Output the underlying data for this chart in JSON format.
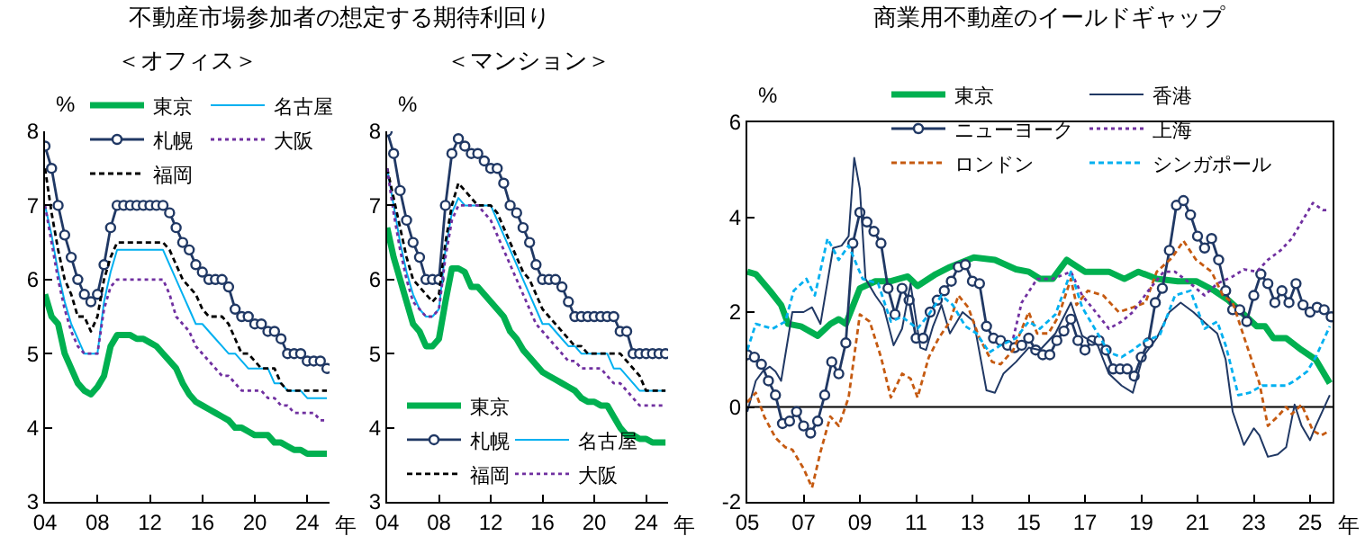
{
  "chart_data": [
    {
      "type": "line",
      "title": "不動産市場参加者の想定する期待利回り",
      "subtitle": "＜オフィス＞",
      "xlabel": "年",
      "ylabel": "%",
      "legend": "top",
      "x": [
        2004,
        2004.5,
        2005,
        2005.5,
        2006,
        2006.5,
        2007,
        2007.5,
        2008,
        2008.5,
        2009,
        2009.5,
        2010,
        2010.5,
        2011,
        2011.5,
        2012,
        2012.5,
        2013,
        2013.5,
        2014,
        2014.5,
        2015,
        2015.5,
        2016,
        2016.5,
        2017,
        2017.5,
        2018,
        2018.5,
        2019,
        2019.5,
        2020,
        2020.5,
        2021,
        2021.5,
        2022,
        2022.5,
        2023,
        2023.5,
        2024,
        2024.5,
        2025,
        2025.5
      ],
      "xlim": [
        2004,
        2025.7
      ],
      "xticks": [
        {
          "value": 2004,
          "label": "04"
        },
        {
          "value": 2008,
          "label": "08"
        },
        {
          "value": 2012,
          "label": "12"
        },
        {
          "value": 2016,
          "label": "16"
        },
        {
          "value": 2020,
          "label": "20"
        },
        {
          "value": 2024,
          "label": "24"
        }
      ],
      "ylim": [
        3,
        8
      ],
      "yticks": [
        3,
        4,
        5,
        6,
        7,
        8
      ],
      "series": [
        {
          "name": "東京",
          "color": "#00b050",
          "line_style": "solid",
          "values": [
            5.8,
            5.5,
            5.4,
            5.0,
            4.8,
            4.6,
            4.5,
            4.45,
            4.55,
            4.7,
            5.1,
            5.25,
            5.25,
            5.25,
            5.2,
            5.2,
            5.15,
            5.1,
            5.0,
            4.9,
            4.8,
            4.6,
            4.45,
            4.35,
            4.3,
            4.25,
            4.2,
            4.15,
            4.1,
            4.0,
            4.0,
            3.95,
            3.9,
            3.9,
            3.9,
            3.8,
            3.8,
            3.75,
            3.7,
            3.7,
            3.65,
            3.65,
            3.65,
            3.65
          ]
        },
        {
          "name": "札幌",
          "color": "#203864",
          "line_style": "solid",
          "marker": "circle",
          "values": [
            7.8,
            7.5,
            7.0,
            6.6,
            6.3,
            6.0,
            5.8,
            5.7,
            5.8,
            6.2,
            6.7,
            7.0,
            7.0,
            7.0,
            7.0,
            7.0,
            7.0,
            7.0,
            7.0,
            6.9,
            6.7,
            6.5,
            6.4,
            6.2,
            6.1,
            6.0,
            6.0,
            6.0,
            5.9,
            5.6,
            5.5,
            5.5,
            5.4,
            5.4,
            5.3,
            5.3,
            5.2,
            5.0,
            5.0,
            5.0,
            4.9,
            4.9,
            4.9,
            4.8
          ]
        },
        {
          "name": "福岡",
          "color": "#000000",
          "line_style": "dashed",
          "values": [
            7.5,
            6.9,
            6.4,
            6.0,
            5.8,
            5.5,
            5.5,
            5.3,
            5.5,
            6.0,
            6.3,
            6.5,
            6.5,
            6.5,
            6.5,
            6.5,
            6.5,
            6.5,
            6.5,
            6.4,
            6.2,
            6.0,
            5.9,
            5.8,
            5.6,
            5.5,
            5.5,
            5.5,
            5.4,
            5.2,
            5.0,
            5.0,
            4.9,
            4.8,
            4.8,
            4.8,
            4.6,
            4.5,
            4.5,
            4.5,
            4.5,
            4.5,
            4.5,
            4.5
          ]
        },
        {
          "name": "名古屋",
          "color": "#00b0f0",
          "line_style": "solid",
          "values": [
            7.0,
            6.6,
            6.1,
            5.7,
            5.4,
            5.2,
            5.0,
            5.0,
            5.0,
            5.7,
            6.1,
            6.4,
            6.4,
            6.4,
            6.4,
            6.4,
            6.4,
            6.4,
            6.4,
            6.2,
            6.0,
            5.8,
            5.6,
            5.4,
            5.4,
            5.3,
            5.2,
            5.1,
            5.0,
            5.0,
            4.9,
            4.8,
            4.8,
            4.8,
            4.8,
            4.6,
            4.6,
            4.5,
            4.5,
            4.5,
            4.4,
            4.4,
            4.4,
            4.4
          ]
        },
        {
          "name": "大阪",
          "color": "#7030a0",
          "line_style": "dotted",
          "values": [
            7.0,
            6.5,
            6.0,
            5.6,
            5.3,
            5.1,
            5.0,
            5.0,
            5.0,
            5.6,
            5.9,
            6.0,
            6.0,
            6.0,
            6.0,
            6.0,
            6.0,
            6.0,
            6.0,
            5.8,
            5.5,
            5.4,
            5.3,
            5.1,
            5.0,
            4.9,
            4.8,
            4.7,
            4.7,
            4.6,
            4.5,
            4.5,
            4.5,
            4.5,
            4.4,
            4.4,
            4.3,
            4.3,
            4.2,
            4.2,
            4.2,
            4.2,
            4.1,
            4.1
          ]
        }
      ]
    },
    {
      "type": "line",
      "subtitle": "＜マンション＞",
      "xlabel": "年",
      "ylabel": "%",
      "legend": "bottom left",
      "x": [
        2004,
        2004.5,
        2005,
        2005.5,
        2006,
        2006.5,
        2007,
        2007.5,
        2008,
        2008.5,
        2009,
        2009.5,
        2010,
        2010.5,
        2011,
        2011.5,
        2012,
        2012.5,
        2013,
        2013.5,
        2014,
        2014.5,
        2015,
        2015.5,
        2016,
        2016.5,
        2017,
        2017.5,
        2018,
        2018.5,
        2019,
        2019.5,
        2020,
        2020.5,
        2021,
        2021.5,
        2022,
        2022.5,
        2023,
        2023.5,
        2024,
        2024.5,
        2025,
        2025.5
      ],
      "xlim": [
        2004,
        2025.7
      ],
      "xticks": [
        {
          "value": 2004,
          "label": "04"
        },
        {
          "value": 2008,
          "label": "08"
        },
        {
          "value": 2012,
          "label": "12"
        },
        {
          "value": 2016,
          "label": "16"
        },
        {
          "value": 2020,
          "label": "20"
        },
        {
          "value": 2024,
          "label": "24"
        }
      ],
      "ylim": [
        3,
        8
      ],
      "yticks": [
        3,
        4,
        5,
        6,
        7,
        8
      ],
      "series": [
        {
          "name": "東京",
          "color": "#00b050",
          "line_style": "solid",
          "values": [
            6.7,
            6.3,
            6.0,
            5.7,
            5.4,
            5.3,
            5.1,
            5.1,
            5.2,
            5.7,
            6.15,
            6.15,
            6.1,
            5.9,
            5.9,
            5.8,
            5.7,
            5.6,
            5.5,
            5.3,
            5.2,
            5.05,
            4.95,
            4.85,
            4.75,
            4.7,
            4.65,
            4.6,
            4.55,
            4.5,
            4.4,
            4.35,
            4.35,
            4.3,
            4.3,
            4.15,
            4.0,
            3.9,
            3.9,
            3.85,
            3.85,
            3.8,
            3.8,
            3.8
          ]
        },
        {
          "name": "札幌",
          "color": "#203864",
          "line_style": "solid",
          "marker": "circle",
          "values": [
            8.0,
            7.7,
            7.2,
            6.8,
            6.5,
            6.3,
            6.0,
            6.0,
            6.0,
            7.0,
            7.7,
            7.9,
            7.8,
            7.7,
            7.7,
            7.6,
            7.5,
            7.5,
            7.3,
            7.0,
            6.9,
            6.7,
            6.5,
            6.2,
            6.0,
            6.0,
            6.0,
            5.9,
            5.7,
            5.5,
            5.5,
            5.5,
            5.5,
            5.5,
            5.5,
            5.5,
            5.3,
            5.3,
            5.0,
            5.0,
            5.0,
            5.0,
            5.0,
            5.0
          ]
        },
        {
          "name": "福岡",
          "color": "#000000",
          "line_style": "dashed",
          "values": [
            7.5,
            7.1,
            6.7,
            6.3,
            6.0,
            5.9,
            5.8,
            5.7,
            5.8,
            6.5,
            7.0,
            7.3,
            7.2,
            7.1,
            7.0,
            7.0,
            7.0,
            6.9,
            6.7,
            6.5,
            6.3,
            6.1,
            6.0,
            5.8,
            5.6,
            5.5,
            5.4,
            5.3,
            5.2,
            5.1,
            5.1,
            5.0,
            5.0,
            5.0,
            5.0,
            5.0,
            5.0,
            4.9,
            4.8,
            4.7,
            4.5,
            4.5,
            4.5,
            4.5
          ]
        },
        {
          "name": "名古屋",
          "color": "#00b0f0",
          "line_style": "solid",
          "values": [
            7.5,
            7.0,
            6.5,
            6.1,
            5.8,
            5.6,
            5.5,
            5.5,
            5.6,
            6.4,
            6.9,
            7.1,
            7.0,
            7.0,
            7.0,
            7.0,
            7.0,
            6.8,
            6.6,
            6.4,
            6.2,
            6.0,
            5.8,
            5.6,
            5.4,
            5.4,
            5.3,
            5.2,
            5.1,
            5.1,
            5.0,
            5.0,
            5.0,
            5.0,
            5.0,
            4.8,
            4.8,
            4.7,
            4.6,
            4.5,
            4.5,
            4.5,
            4.5,
            4.5
          ]
        },
        {
          "name": "大阪",
          "color": "#7030a0",
          "line_style": "dotted",
          "values": [
            7.5,
            6.9,
            6.4,
            6.0,
            5.7,
            5.6,
            5.5,
            5.5,
            5.6,
            6.3,
            6.8,
            7.0,
            7.0,
            7.0,
            7.0,
            6.9,
            6.8,
            6.6,
            6.4,
            6.2,
            6.0,
            5.8,
            5.6,
            5.4,
            5.3,
            5.2,
            5.1,
            5.0,
            4.9,
            4.9,
            4.8,
            4.8,
            4.8,
            4.8,
            4.7,
            4.6,
            4.6,
            4.5,
            4.4,
            4.3,
            4.3,
            4.3,
            4.3,
            4.3
          ]
        }
      ]
    },
    {
      "type": "line",
      "title": "商業用不動産のイールドギャップ",
      "xlabel": "年",
      "ylabel": "%",
      "legend": "top",
      "xlim": [
        2005,
        2025.8
      ],
      "xticks": [
        {
          "value": 2005,
          "label": "05"
        },
        {
          "value": 2007,
          "label": "07"
        },
        {
          "value": 2009,
          "label": "09"
        },
        {
          "value": 2011,
          "label": "11"
        },
        {
          "value": 2013,
          "label": "13"
        },
        {
          "value": 2015,
          "label": "15"
        },
        {
          "value": 2017,
          "label": "17"
        },
        {
          "value": 2019,
          "label": "19"
        },
        {
          "value": 2021,
          "label": "21"
        },
        {
          "value": 2023,
          "label": "23"
        },
        {
          "value": 2025,
          "label": "25"
        }
      ],
      "ylim": [
        -2,
        6
      ],
      "yticks": [
        -2,
        0,
        2,
        4,
        6
      ],
      "ref_lines": [
        {
          "axis": "y",
          "value": 0
        }
      ],
      "series": [
        {
          "name": "東京",
          "color": "#00b050",
          "line_style": "solid",
          "x": [
            2005,
            2005.3,
            2005.8,
            2006.2,
            2006.45,
            2006.9,
            2007.5,
            2007.95,
            2008.25,
            2008.5,
            2009,
            2009.55,
            2010.1,
            2010.7,
            2011.05,
            2011.7,
            2012.2,
            2013.05,
            2013.8,
            2014.55,
            2015,
            2015.4,
            2015.85,
            2016.35,
            2017,
            2017.85,
            2018.4,
            2018.9,
            2019.55,
            2020.3,
            2020.95,
            2021.6,
            2022.1,
            2022.65,
            2023.1,
            2023.4,
            2023.7,
            2024.15,
            2024.7,
            2025.2,
            2025.7
          ],
          "values": [
            2.85,
            2.8,
            2.45,
            2.15,
            1.75,
            1.7,
            1.5,
            1.75,
            1.85,
            1.75,
            2.5,
            2.65,
            2.65,
            2.75,
            2.55,
            2.8,
            2.95,
            3.15,
            3.1,
            2.9,
            2.85,
            2.7,
            2.7,
            3.1,
            2.85,
            2.85,
            2.7,
            2.85,
            2.7,
            2.65,
            2.65,
            2.45,
            2.25,
            1.95,
            1.7,
            1.7,
            1.45,
            1.45,
            1.2,
            1.0,
            0.5
          ]
        },
        {
          "name": "ニューヨーク",
          "color": "#203864",
          "line_style": "solid",
          "marker": "circle",
          "x": [
            2005,
            2005.25,
            2005.5,
            2005.75,
            2006,
            2006.25,
            2006.5,
            2006.75,
            2007,
            2007.25,
            2007.5,
            2007.75,
            2008,
            2008.25,
            2008.5,
            2008.75,
            2009,
            2009.25,
            2009.5,
            2009.75,
            2010,
            2010.25,
            2010.5,
            2010.75,
            2011,
            2011.25,
            2011.5,
            2011.75,
            2012,
            2012.25,
            2012.5,
            2012.75,
            2013,
            2013.25,
            2013.5,
            2013.75,
            2014,
            2014.25,
            2014.5,
            2014.75,
            2015,
            2015.25,
            2015.5,
            2015.75,
            2016,
            2016.25,
            2016.5,
            2016.75,
            2017,
            2017.25,
            2017.5,
            2017.75,
            2018,
            2018.25,
            2018.5,
            2018.75,
            2019,
            2019.25,
            2019.5,
            2019.75,
            2020,
            2020.25,
            2020.5,
            2020.75,
            2021,
            2021.25,
            2021.5,
            2021.75,
            2022,
            2022.25,
            2022.5,
            2022.75,
            2023,
            2023.25,
            2023.5,
            2023.75,
            2024,
            2024.25,
            2024.5,
            2024.75,
            2025,
            2025.25,
            2025.5,
            2025.75
          ],
          "values": [
            1.1,
            1.05,
            0.9,
            0.55,
            0.25,
            -0.35,
            -0.3,
            -0.1,
            -0.4,
            -0.55,
            -0.3,
            0.25,
            0.95,
            0.7,
            1.35,
            3.45,
            4.1,
            3.9,
            3.7,
            3.45,
            2.5,
            1.95,
            2.5,
            2.25,
            1.45,
            1.45,
            2.0,
            2.25,
            2.45,
            2.65,
            2.95,
            3.0,
            2.65,
            2.6,
            1.7,
            1.45,
            1.4,
            1.3,
            1.25,
            1.3,
            1.45,
            1.2,
            1.1,
            1.1,
            1.4,
            1.6,
            1.85,
            1.4,
            1.2,
            1.4,
            1.4,
            1.2,
            0.8,
            0.8,
            0.8,
            0.65,
            1.05,
            1.35,
            2.2,
            2.5,
            3.3,
            4.25,
            4.35,
            4.05,
            3.6,
            3.35,
            3.55,
            3.1,
            2.45,
            2.05,
            2.05,
            1.8,
            2.35,
            2.8,
            2.6,
            2.2,
            2.45,
            2.2,
            2.6,
            2.15,
            2.0,
            2.1,
            2.05,
            1.9
          ]
        },
        {
          "name": "ロンドン",
          "color": "#c55a11",
          "line_style": "dashed",
          "x": [
            2005,
            2005.3,
            2005.6,
            2006,
            2006.35,
            2006.6,
            2007,
            2007.3,
            2007.6,
            2007.95,
            2008.25,
            2008.6,
            2009,
            2009.35,
            2009.75,
            2010.1,
            2010.5,
            2010.8,
            2011.05,
            2011.45,
            2011.8,
            2012.2,
            2012.5,
            2012.85,
            2013.25,
            2013.7,
            2014,
            2014.45,
            2015,
            2015.3,
            2015.7,
            2016.05,
            2016.5,
            2016.7,
            2017.1,
            2017.65,
            2018.2,
            2018.7,
            2019.15,
            2019.55,
            2020.1,
            2020.5,
            2020.95,
            2021.5,
            2021.9,
            2022.25,
            2022.75,
            2023.2,
            2023.5,
            2023.85,
            2024.15,
            2024.35,
            2024.7,
            2025.1,
            2025.4,
            2025.7
          ],
          "values": [
            0.1,
            0.3,
            -0.2,
            -0.65,
            -0.85,
            -0.9,
            -1.3,
            -1.7,
            -0.95,
            -0.2,
            -0.4,
            0.2,
            1.95,
            1.8,
            1.05,
            0.2,
            0.7,
            0.6,
            0.2,
            1.05,
            1.45,
            1.8,
            2.35,
            2.1,
            1.45,
            0.95,
            0.9,
            1.2,
            2.0,
            1.55,
            1.55,
            1.9,
            2.7,
            2.15,
            2.45,
            2.35,
            2.0,
            2.1,
            2.2,
            2.85,
            3.15,
            3.5,
            3.1,
            2.85,
            2.35,
            2.2,
            1.3,
            0.5,
            -0.4,
            -0.2,
            0.0,
            -0.15,
            0.05,
            -0.5,
            -0.6,
            -0.5
          ]
        },
        {
          "name": "香港",
          "color": "#203864",
          "line_style": "solid",
          "x": [
            2005,
            2005.3,
            2005.55,
            2005.8,
            2006,
            2006.2,
            2006.6,
            2007,
            2007.3,
            2007.6,
            2008.05,
            2008.35,
            2008.6,
            2008.8,
            2009,
            2009.2,
            2009.55,
            2009.85,
            2010.2,
            2010.5,
            2010.8,
            2011.15,
            2011.35,
            2011.6,
            2011.9,
            2012.2,
            2012.65,
            2013.05,
            2013.5,
            2013.8,
            2014.1,
            2014.55,
            2015,
            2015.4,
            2015.95,
            2016.5,
            2016.9,
            2017.45,
            2017.85,
            2018.3,
            2018.7,
            2019.05,
            2019.55,
            2020,
            2020.4,
            2020.85,
            2021.4,
            2021.7,
            2022,
            2022.25,
            2022.65,
            2023,
            2023.2,
            2023.5,
            2023.85,
            2024.15,
            2024.45,
            2024.7,
            2025,
            2025.2,
            2025.7
          ],
          "values": [
            -0.1,
            0.55,
            0.75,
            0.85,
            0.75,
            0.55,
            2.0,
            2.0,
            2.1,
            1.75,
            3.35,
            3.4,
            3.6,
            5.25,
            4.6,
            2.7,
            2.35,
            2.1,
            1.3,
            1.65,
            2.6,
            1.25,
            1.2,
            1.7,
            2.15,
            1.55,
            2.0,
            1.8,
            0.35,
            0.3,
            0.7,
            0.95,
            1.25,
            1.2,
            1.55,
            2.2,
            1.5,
            1.3,
            0.7,
            0.45,
            0.3,
            1.05,
            1.45,
            2.0,
            2.2,
            2.0,
            1.7,
            1.55,
            1.0,
            -0.1,
            -0.8,
            -0.45,
            -0.6,
            -1.05,
            -1.0,
            -0.85,
            0.05,
            -0.4,
            -0.7,
            -0.4,
            0.25
          ]
        },
        {
          "name": "上海",
          "color": "#7030a0",
          "line_style": "dotted",
          "x": [
            2014.45,
            2014.75,
            2015.3,
            2015.85,
            2016.5,
            2016.9,
            2017.45,
            2017.85,
            2018.3,
            2018.7,
            2019.25,
            2019.8,
            2020.2,
            2020.75,
            2021.25,
            2021.7,
            2022.25,
            2022.65,
            2023.1,
            2023.5,
            2023.95,
            2024.35,
            2024.8,
            2025.1,
            2025.45,
            2025.7
          ],
          "values": [
            1.45,
            2.2,
            2.7,
            2.7,
            2.85,
            2.35,
            1.95,
            1.65,
            1.8,
            2.0,
            2.45,
            2.85,
            2.85,
            2.6,
            2.35,
            2.6,
            2.75,
            2.9,
            2.85,
            3.1,
            3.3,
            3.55,
            4.0,
            4.3,
            4.15,
            4.15
          ]
        },
        {
          "name": "シンガポール",
          "color": "#00b0f0",
          "line_style": "dashed",
          "x": [
            2005,
            2005.3,
            2005.6,
            2005.9,
            2006.35,
            2006.65,
            2007.1,
            2007.4,
            2007.85,
            2008.25,
            2008.6,
            2009.1,
            2009.65,
            2010.1,
            2010.5,
            2011.05,
            2011.45,
            2011.9,
            2012.3,
            2012.75,
            2013.15,
            2013.6,
            2014,
            2014.55,
            2015,
            2015.4,
            2015.95,
            2016.5,
            2016.9,
            2017.45,
            2017.85,
            2018.3,
            2018.7,
            2019.15,
            2019.65,
            2020.2,
            2020.75,
            2021.25,
            2021.7,
            2022,
            2022.45,
            2022.85,
            2023.3,
            2023.8,
            2024.15,
            2024.45,
            2024.9,
            2025.2,
            2025.7
          ],
          "values": [
            1.2,
            1.75,
            1.7,
            1.65,
            1.8,
            2.45,
            2.7,
            2.35,
            3.55,
            3.1,
            3.4,
            2.7,
            2.6,
            1.8,
            1.9,
            1.65,
            1.95,
            2.35,
            2.15,
            1.7,
            1.55,
            1.15,
            1.3,
            1.45,
            1.8,
            1.65,
            1.95,
            2.85,
            2.1,
            1.55,
            1.15,
            1.05,
            1.2,
            1.4,
            1.5,
            2.35,
            2.45,
            1.65,
            1.8,
            1.3,
            0.25,
            0.3,
            0.45,
            0.45,
            0.45,
            0.55,
            0.75,
            1.05,
            1.7
          ]
        }
      ]
    }
  ]
}
